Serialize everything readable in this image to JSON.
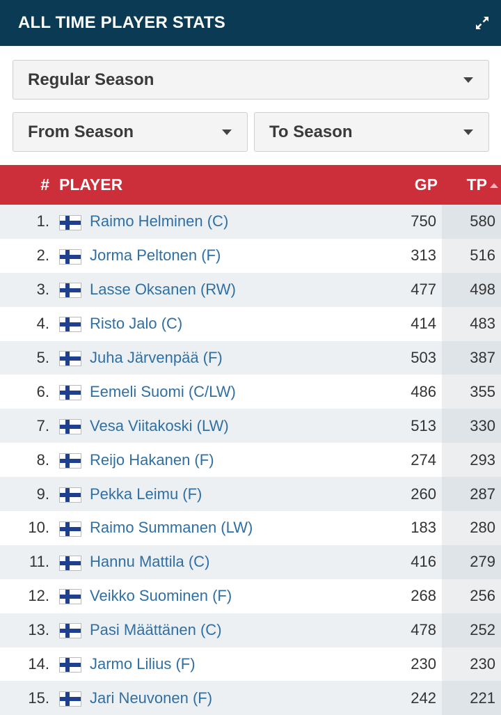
{
  "header": {
    "title": "ALL TIME PLAYER STATS"
  },
  "filters": {
    "season_type": "Regular Season",
    "from_season": "From Season",
    "to_season": "To Season"
  },
  "table": {
    "columns": {
      "rank": "#",
      "player": "PLAYER",
      "gp": "GP",
      "tp": "TP"
    },
    "rows": [
      {
        "rank": "1.",
        "player": "Raimo Helminen (C)",
        "gp": "750",
        "tp": "580"
      },
      {
        "rank": "2.",
        "player": "Jorma Peltonen (F)",
        "gp": "313",
        "tp": "516"
      },
      {
        "rank": "3.",
        "player": "Lasse Oksanen (RW)",
        "gp": "477",
        "tp": "498"
      },
      {
        "rank": "4.",
        "player": "Risto Jalo (C)",
        "gp": "414",
        "tp": "483"
      },
      {
        "rank": "5.",
        "player": "Juha Järvenpää (F)",
        "gp": "503",
        "tp": "387"
      },
      {
        "rank": "6.",
        "player": "Eemeli Suomi (C/LW)",
        "gp": "486",
        "tp": "355"
      },
      {
        "rank": "7.",
        "player": "Vesa Viitakoski (LW)",
        "gp": "513",
        "tp": "330"
      },
      {
        "rank": "8.",
        "player": "Reijo Hakanen (F)",
        "gp": "274",
        "tp": "293"
      },
      {
        "rank": "9.",
        "player": "Pekka Leimu (F)",
        "gp": "260",
        "tp": "287"
      },
      {
        "rank": "10.",
        "player": "Raimo Summanen (LW)",
        "gp": "183",
        "tp": "280"
      },
      {
        "rank": "11.",
        "player": "Hannu Mattila (C)",
        "gp": "416",
        "tp": "279"
      },
      {
        "rank": "12.",
        "player": "Veikko Suominen (F)",
        "gp": "268",
        "tp": "256"
      },
      {
        "rank": "13.",
        "player": "Pasi Määttänen (C)",
        "gp": "478",
        "tp": "252"
      },
      {
        "rank": "14.",
        "player": "Jarmo Lilius (F)",
        "gp": "230",
        "tp": "230"
      },
      {
        "rank": "15.",
        "player": "Jari Neuvonen (F)",
        "gp": "242",
        "tp": "221"
      }
    ]
  }
}
